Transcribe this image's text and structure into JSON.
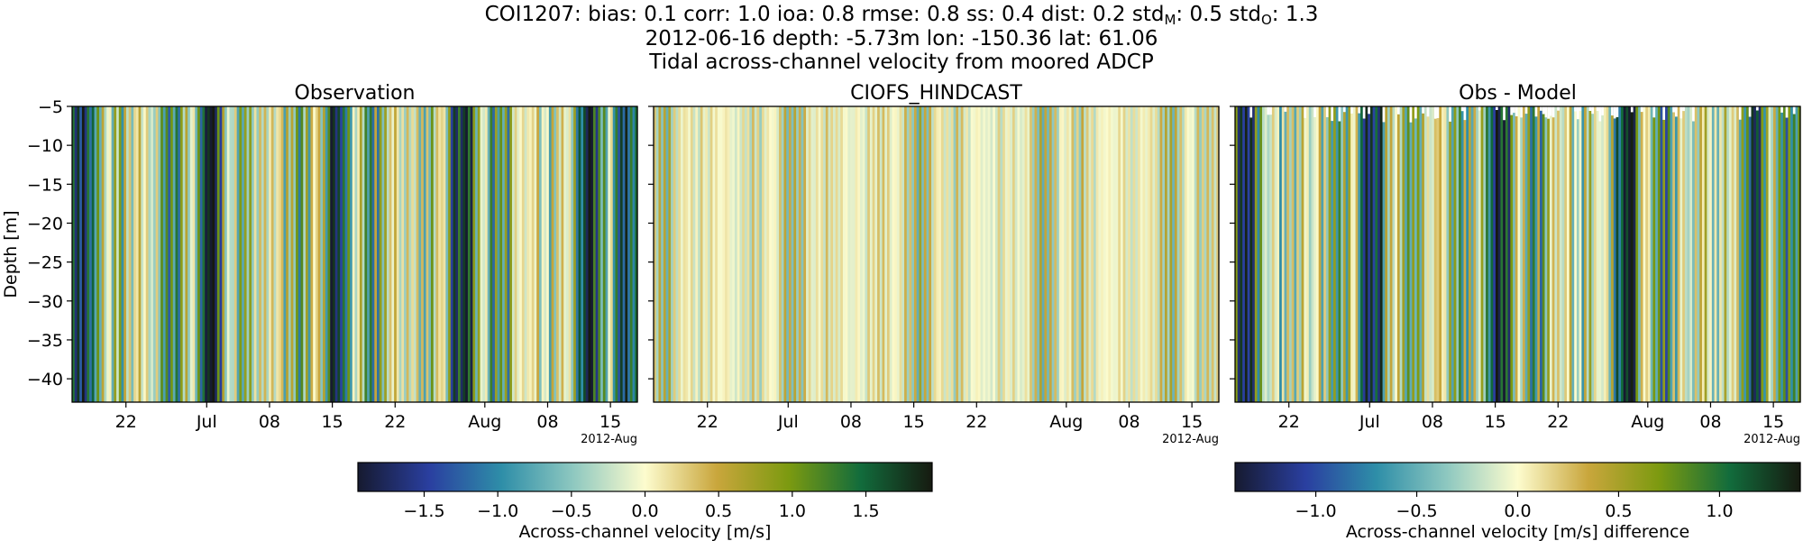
{
  "header": {
    "line1": {
      "station": "COI1207",
      "stats": [
        {
          "key": "bias",
          "label": "bias",
          "sub": "",
          "value": "0.1"
        },
        {
          "key": "corr",
          "label": "corr",
          "sub": "",
          "value": "1.0"
        },
        {
          "key": "ioa",
          "label": "ioa",
          "sub": "",
          "value": "0.8"
        },
        {
          "key": "rmse",
          "label": "rmse",
          "sub": "",
          "value": "0.8"
        },
        {
          "key": "ss",
          "label": "ss",
          "sub": "",
          "value": "0.4"
        },
        {
          "key": "dist",
          "label": "dist",
          "sub": "",
          "value": "0.2"
        },
        {
          "key": "stdm",
          "label": "std",
          "sub": "M",
          "value": "0.5"
        },
        {
          "key": "stdo",
          "label": "std",
          "sub": "O",
          "value": "1.3"
        }
      ]
    },
    "line2": "2012-06-16 depth: -5.73m lon: -150.36 lat: 61.06",
    "line3": "Tidal across-channel velocity from moored ADCP"
  },
  "chart_data": {
    "type": "heatmap",
    "colormaps": {
      "velocity": [
        "#161a30",
        "#2a3fa0",
        "#2e8ea8",
        "#8ec8c0",
        "#fdfcce",
        "#c9a63c",
        "#7c9a10",
        "#126c3c",
        "#161a10"
      ]
    },
    "shared_axes": {
      "ylabel": "Depth [m]",
      "ylim": [
        -43,
        -5
      ],
      "yticks": [
        -5,
        -10,
        -15,
        -20,
        -25,
        -30,
        -35,
        -40
      ],
      "xlim_days": [
        0,
        63
      ],
      "xticks": [
        {
          "day": 6,
          "label": "22"
        },
        {
          "day": 15,
          "label": "Jul"
        },
        {
          "day": 22,
          "label": "08"
        },
        {
          "day": 29,
          "label": "15"
        },
        {
          "day": 36,
          "label": "22"
        },
        {
          "day": 46,
          "label": "Aug"
        },
        {
          "day": 53,
          "label": "08"
        },
        {
          "day": 60,
          "label": "15"
        }
      ],
      "x_offset_label": "2012-Aug",
      "x_start_date": "2012-06-16"
    },
    "panels": [
      {
        "id": "obs",
        "title": "Observation",
        "amplitude": 1.9,
        "gaps": false
      },
      {
        "id": "model",
        "title": "CIOFS_HINDCAST",
        "amplitude": 0.6,
        "gaps": false
      },
      {
        "id": "diff",
        "title": "Obs - Model",
        "amplitude": 1.3,
        "gaps": true
      }
    ],
    "colorbars": [
      {
        "id": "velocity",
        "label": "Across-channel velocity [m/s]",
        "vmin": -1.95,
        "vmax": 1.95,
        "ticks": [
          -1.5,
          -1.0,
          -0.5,
          0.0,
          0.5,
          1.0,
          1.5
        ],
        "tick_labels": [
          "−1.5",
          "−1.0",
          "−0.5",
          "0.0",
          "0.5",
          "1.0",
          "1.5"
        ]
      },
      {
        "id": "difference",
        "label": "Across-channel velocity [m/s] difference",
        "vmin": -1.4,
        "vmax": 1.4,
        "ticks": [
          -1.0,
          -0.5,
          0.0,
          0.5,
          1.0
        ],
        "tick_labels": [
          "−1.0",
          "−0.5",
          "0.0",
          "0.5",
          "1.0"
        ]
      }
    ]
  }
}
